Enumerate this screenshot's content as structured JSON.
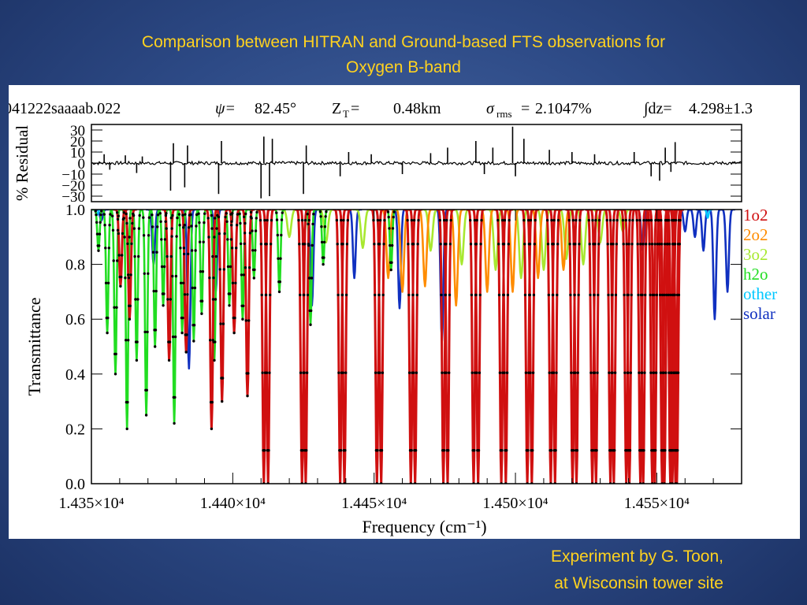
{
  "slide": {
    "title_line1": "Comparison between HITRAN and Ground-based FTS observations for",
    "title_line2": "Oxygen B-band",
    "footer_line1": "Experiment by G. Toon,",
    "footer_line2": "at Wisconsin tower site"
  },
  "header": {
    "spectrum_id": "041222saaaab.022",
    "psi_label": "ψ=",
    "psi_value": "82.45°",
    "zt_label": "Z",
    "zt_sub": "T",
    "zt_eq": "=",
    "zt_value": "0.48km",
    "sigma_label": "σ",
    "sigma_sub": "rms",
    "sigma_eq": "=",
    "sigma_value": "2.1047%",
    "integral_label": "∫dz=",
    "integral_value": "4.298±1.3"
  },
  "colors": {
    "o2_1": "#d01010",
    "o2_2": "#ff8c00",
    "o2_3": "#a8e830",
    "h2o": "#22dd22",
    "other": "#00c8ff",
    "solar": "#1030c0",
    "observed": "#000000"
  },
  "chart_data": [
    {
      "type": "line",
      "panel": "residual",
      "ylabel": "% Residual",
      "ylim": [
        -35,
        35
      ],
      "yticks": [
        -30,
        -20,
        -10,
        0,
        10,
        20,
        30
      ],
      "ytick_labels": [
        "−30",
        "−20",
        "−10",
        "0",
        "10",
        "20",
        "30"
      ],
      "xlim": [
        14350,
        14580
      ],
      "grid": false,
      "spikes": [
        {
          "x": 14354.5,
          "y": 8
        },
        {
          "x": 14356.5,
          "y": -6
        },
        {
          "x": 14362,
          "y": 7
        },
        {
          "x": 14366,
          "y": -9
        },
        {
          "x": 14368,
          "y": 6
        },
        {
          "x": 14378,
          "y": -25
        },
        {
          "x": 14379,
          "y": 18
        },
        {
          "x": 14383,
          "y": -22
        },
        {
          "x": 14384,
          "y": 16
        },
        {
          "x": 14395,
          "y": -28
        },
        {
          "x": 14396,
          "y": 20
        },
        {
          "x": 14410,
          "y": -32
        },
        {
          "x": 14411,
          "y": 24
        },
        {
          "x": 14413,
          "y": -30
        },
        {
          "x": 14414,
          "y": 22
        },
        {
          "x": 14425,
          "y": -28
        },
        {
          "x": 14426,
          "y": 16
        },
        {
          "x": 14438,
          "y": -12
        },
        {
          "x": 14441,
          "y": 10
        },
        {
          "x": 14449,
          "y": 8
        },
        {
          "x": 14460,
          "y": -10
        },
        {
          "x": 14470,
          "y": 9
        },
        {
          "x": 14476,
          "y": 14
        },
        {
          "x": 14486,
          "y": 20
        },
        {
          "x": 14489,
          "y": -10
        },
        {
          "x": 14492,
          "y": 14
        },
        {
          "x": 14499,
          "y": 33
        },
        {
          "x": 14500,
          "y": -12
        },
        {
          "x": 14503,
          "y": 22
        },
        {
          "x": 14512,
          "y": 12
        },
        {
          "x": 14520,
          "y": 10
        },
        {
          "x": 14528,
          "y": 8
        },
        {
          "x": 14542,
          "y": 10
        },
        {
          "x": 14548,
          "y": -12
        },
        {
          "x": 14551,
          "y": -16
        },
        {
          "x": 14553,
          "y": 14
        },
        {
          "x": 14555,
          "y": -8
        },
        {
          "x": 14556.5,
          "y": 19
        }
      ]
    },
    {
      "type": "line",
      "panel": "transmittance",
      "xlabel": "Frequency (cm⁻¹)",
      "ylabel": "Transmittance",
      "xlim": [
        14350,
        14580
      ],
      "ylim": [
        0,
        1
      ],
      "xticks": [
        14350,
        14400,
        14450,
        14500,
        14550
      ],
      "xtick_labels": [
        "1.435×10⁴",
        "1.440×10⁴",
        "1.445×10⁴",
        "1.450×10⁴",
        "1.455×10⁴"
      ],
      "yticks": [
        0,
        0.2,
        0.4,
        0.6,
        0.8,
        1.0
      ],
      "ytick_labels": [
        "0.0",
        "0.2",
        "0.4",
        "0.6",
        "0.8",
        "1.0"
      ],
      "grid": false,
      "legend_position": "right",
      "legend": [
        "1o2",
        "2o2",
        "3o2",
        "h2o",
        "other",
        "solar"
      ],
      "legend_color_keys": [
        "o2_1",
        "o2_2",
        "o2_3",
        "h2o",
        "other",
        "solar"
      ],
      "series": [
        {
          "name": "1o2",
          "lines": [
            {
              "x": 14360.3,
              "depth": 0.28
            },
            {
              "x": 14363.5,
              "depth": 0.4
            },
            {
              "x": 14377.5,
              "depth": 0.55
            },
            {
              "x": 14383.5,
              "depth": 0.52
            },
            {
              "x": 14392.5,
              "depth": 0.8
            },
            {
              "x": 14396.2,
              "depth": 0.7
            },
            {
              "x": 14400.5,
              "depth": 0.45
            },
            {
              "x": 14405.2,
              "depth": 0.68
            },
            {
              "x": 14411.0,
              "depth": 1.0
            },
            {
              "x": 14412.5,
              "depth": 1.0
            },
            {
              "x": 14424.5,
              "depth": 1.0
            },
            {
              "x": 14425.8,
              "depth": 1.0
            },
            {
              "x": 14438.0,
              "depth": 1.0
            },
            {
              "x": 14439.5,
              "depth": 1.0
            },
            {
              "x": 14451.0,
              "depth": 1.0
            },
            {
              "x": 14452.5,
              "depth": 1.0
            },
            {
              "x": 14463.0,
              "depth": 1.0
            },
            {
              "x": 14464.5,
              "depth": 1.0
            },
            {
              "x": 14474.5,
              "depth": 1.0
            },
            {
              "x": 14476.0,
              "depth": 1.0
            },
            {
              "x": 14485.2,
              "depth": 1.0
            },
            {
              "x": 14486.8,
              "depth": 1.0
            },
            {
              "x": 14495.0,
              "depth": 1.0
            },
            {
              "x": 14496.6,
              "depth": 1.0
            },
            {
              "x": 14504.2,
              "depth": 1.0
            },
            {
              "x": 14505.8,
              "depth": 1.0
            },
            {
              "x": 14512.5,
              "depth": 1.0
            },
            {
              "x": 14514.0,
              "depth": 1.0
            },
            {
              "x": 14520.2,
              "depth": 1.0
            },
            {
              "x": 14521.6,
              "depth": 1.0
            },
            {
              "x": 14527.2,
              "depth": 1.0
            },
            {
              "x": 14528.5,
              "depth": 1.0
            },
            {
              "x": 14533.6,
              "depth": 1.0
            },
            {
              "x": 14534.8,
              "depth": 1.0
            },
            {
              "x": 14539.2,
              "depth": 1.0
            },
            {
              "x": 14540.3,
              "depth": 1.0
            },
            {
              "x": 14544.2,
              "depth": 1.0
            },
            {
              "x": 14545.2,
              "depth": 1.0
            },
            {
              "x": 14548.4,
              "depth": 1.0
            },
            {
              "x": 14549.3,
              "depth": 1.0
            },
            {
              "x": 14551.9,
              "depth": 1.0
            },
            {
              "x": 14552.7,
              "depth": 1.0
            },
            {
              "x": 14554.8,
              "depth": 1.0
            },
            {
              "x": 14555.5,
              "depth": 1.0
            },
            {
              "x": 14556.6,
              "depth": 1.0
            },
            {
              "x": 14557.1,
              "depth": 1.0
            }
          ]
        },
        {
          "name": "2o2",
          "lines": [
            {
              "x": 14455,
              "depth": 0.25
            },
            {
              "x": 14460,
              "depth": 0.3
            },
            {
              "x": 14468,
              "depth": 0.28
            },
            {
              "x": 14479,
              "depth": 0.35
            },
            {
              "x": 14490,
              "depth": 0.3
            },
            {
              "x": 14499,
              "depth": 0.3
            },
            {
              "x": 14508,
              "depth": 0.25
            },
            {
              "x": 14517,
              "depth": 0.22
            }
          ]
        },
        {
          "name": "3o2",
          "lines": [
            {
              "x": 14420,
              "depth": 0.1
            },
            {
              "x": 14433,
              "depth": 0.12
            },
            {
              "x": 14446,
              "depth": 0.14
            },
            {
              "x": 14470,
              "depth": 0.15
            },
            {
              "x": 14481,
              "depth": 0.2
            },
            {
              "x": 14493,
              "depth": 0.22
            },
            {
              "x": 14502,
              "depth": 0.25
            },
            {
              "x": 14510,
              "depth": 0.22
            },
            {
              "x": 14518,
              "depth": 0.18
            },
            {
              "x": 14524,
              "depth": 0.2
            },
            {
              "x": 14530,
              "depth": 0.12
            },
            {
              "x": 14538,
              "depth": 0.08
            }
          ]
        },
        {
          "name": "h2o",
          "lines": [
            {
              "x": 14352.5,
              "depth": 0.15
            },
            {
              "x": 14355.6,
              "depth": 0.45
            },
            {
              "x": 14358.5,
              "depth": 0.6
            },
            {
              "x": 14362.6,
              "depth": 0.8
            },
            {
              "x": 14366.0,
              "depth": 0.55
            },
            {
              "x": 14369.4,
              "depth": 0.75
            },
            {
              "x": 14372.5,
              "depth": 0.5
            },
            {
              "x": 14375.4,
              "depth": 0.35
            },
            {
              "x": 14379.3,
              "depth": 0.78
            },
            {
              "x": 14382.1,
              "depth": 0.45
            },
            {
              "x": 14386.2,
              "depth": 0.48
            },
            {
              "x": 14389.0,
              "depth": 0.38
            },
            {
              "x": 14393.5,
              "depth": 0.55
            },
            {
              "x": 14398.8,
              "depth": 0.35
            },
            {
              "x": 14403.5,
              "depth": 0.4
            },
            {
              "x": 14407.5,
              "depth": 0.25
            },
            {
              "x": 14416.5,
              "depth": 0.3
            },
            {
              "x": 14427.5,
              "depth": 0.42
            },
            {
              "x": 14432.0,
              "depth": 0.2
            },
            {
              "x": 14456.0,
              "depth": 0.22
            }
          ]
        },
        {
          "name": "other",
          "lines": [
            {
              "x": 14352.0,
              "depth": 0.02
            },
            {
              "x": 14568.0,
              "depth": 0.03
            }
          ]
        },
        {
          "name": "solar",
          "lines": [
            {
              "x": 14353.5,
              "depth": 0.04
            },
            {
              "x": 14372.0,
              "depth": 0.2
            },
            {
              "x": 14384.5,
              "depth": 0.58
            },
            {
              "x": 14394.0,
              "depth": 0.3
            },
            {
              "x": 14428.0,
              "depth": 0.35
            },
            {
              "x": 14443.0,
              "depth": 0.25
            },
            {
              "x": 14459.0,
              "depth": 0.36
            },
            {
              "x": 14474.0,
              "depth": 0.48
            },
            {
              "x": 14545.0,
              "depth": 0.15
            },
            {
              "x": 14560.0,
              "depth": 0.08
            },
            {
              "x": 14563.5,
              "depth": 0.1
            },
            {
              "x": 14566.5,
              "depth": 0.15
            },
            {
              "x": 14570.5,
              "depth": 0.4
            },
            {
              "x": 14575.0,
              "depth": 0.3
            }
          ]
        }
      ]
    }
  ]
}
